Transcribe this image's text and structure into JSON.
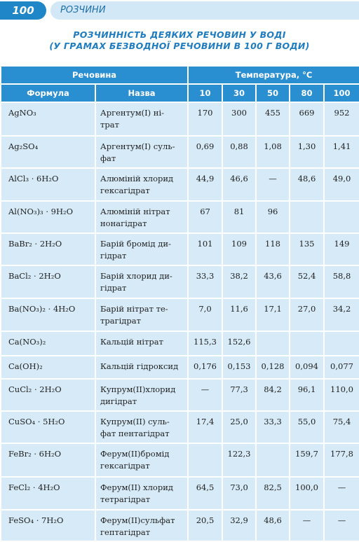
{
  "header": {
    "page_number": "100",
    "section": "РОЗЧИНИ"
  },
  "title": {
    "line1": "РОЗЧИННІСТЬ ДЕЯКИХ РЕЧОВИН У ВОДІ",
    "line2": "(У ГРАМАХ БЕЗВОДНОЇ РЕЧОВИНИ В 100 Г ВОДИ)"
  },
  "table": {
    "group_headers": [
      "Речовина",
      "Температура, °С"
    ],
    "columns": [
      "Формула",
      "Назва",
      "10",
      "30",
      "50",
      "80",
      "100"
    ],
    "rows": [
      [
        "AgNO₃",
        "Аргентум(І) ні-\nтрат",
        "170",
        "300",
        "455",
        "669",
        "952"
      ],
      [
        "Ag₂SO₄",
        "Аргентум(І) суль-\nфат",
        "0,69",
        "0,88",
        "1,08",
        "1,30",
        "1,41"
      ],
      [
        "AlCl₃ · 6H₂O",
        "Алюміній хлорид\nгексагідрат",
        "44,9",
        "46,6",
        "—",
        "48,6",
        "49,0"
      ],
      [
        "Al(NO₃)₃ · 9H₂O",
        "Алюміній нітрат\nнонагідрат",
        "67",
        "81",
        "96",
        null,
        null
      ],
      [
        "BaBr₂ · 2H₂O",
        "Барій бромід ди-\nгідрат",
        "101",
        "109",
        "118",
        "135",
        "149"
      ],
      [
        "BaCl₂ · 2H₂O",
        "Барій хлорид ди-\nгідрат",
        "33,3",
        "38,2",
        "43,6",
        "52,4",
        "58,8"
      ],
      [
        "Ba(NO₃)₂ · 4H₂O",
        "Барій нітрат те-\nтрагідрат",
        "7,0",
        "11,6",
        "17,1",
        "27,0",
        "34,2"
      ],
      [
        "Ca(NO₃)₂",
        "Кальцій нітрат",
        "115,3",
        "152,6",
        null,
        null,
        null
      ],
      [
        "Ca(OH)₂",
        "Кальцій гідроксид",
        "0,176",
        "0,153",
        "0,128",
        "0,094",
        "0,077"
      ],
      [
        "CuCl₂ · 2H₂O",
        "Купрум(ІІ)хлорид\nдигідрат",
        "—",
        "77,3",
        "84,2",
        "96,1",
        "110,0"
      ],
      [
        "CuSO₄ · 5H₂O",
        "Купрум(ІІ) суль-\nфат пентагідрат",
        "17,4",
        "25,0",
        "33,3",
        "55,0",
        "75,4"
      ],
      [
        "FeBr₂ · 6H₂O",
        "Ферум(ІІ)бромід\nгексагідрат",
        null,
        "122,3",
        null,
        "159,7",
        "177,8"
      ],
      [
        "FeCl₂ · 4H₂O",
        "Ферум(ІІ) хлорид\nтетрагідрат",
        "64,5",
        "73,0",
        "82,5",
        "100,0",
        "—"
      ],
      [
        "FeSO₄ · 7H₂O",
        "Ферум(ІІ)сульфат\nгептагідрат",
        "20,5",
        "32,9",
        "48,6",
        "—",
        "—"
      ]
    ]
  }
}
